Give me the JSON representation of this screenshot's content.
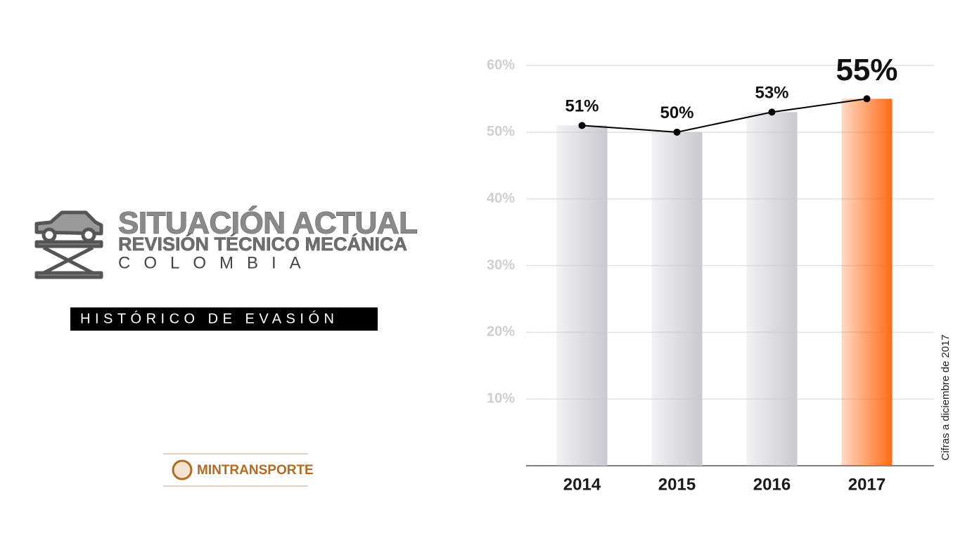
{
  "header": {
    "title": "SITUACIÓN ACTUAL",
    "subtitle": "REVISIÓN TÉCNICO MECÁNICA",
    "country": "COLOMBIA"
  },
  "section_label": "HISTÓRICO DE EVASIÓN",
  "logo_text": "MINTRANSPORTE",
  "chart_data": {
    "type": "bar",
    "categories": [
      "2014",
      "2015",
      "2016",
      "2017"
    ],
    "values": [
      51,
      50,
      53,
      55
    ],
    "value_labels": [
      "51%",
      "50%",
      "53%",
      "55%"
    ],
    "colors": [
      "#c9cacf",
      "#c9cacf",
      "#c9cacf",
      "#ff6a14"
    ],
    "line_color": "#000000",
    "ylim": [
      0,
      60
    ],
    "yticks": [
      {
        "value": 10,
        "label": "10%"
      },
      {
        "value": 20,
        "label": "20%"
      },
      {
        "value": 30,
        "label": "30%"
      },
      {
        "value": 40,
        "label": "40%"
      },
      {
        "value": 50,
        "label": "50%"
      },
      {
        "value": 60,
        "label": "60%"
      }
    ],
    "grid": true,
    "note": "Cifras a diciembre de 2017"
  }
}
